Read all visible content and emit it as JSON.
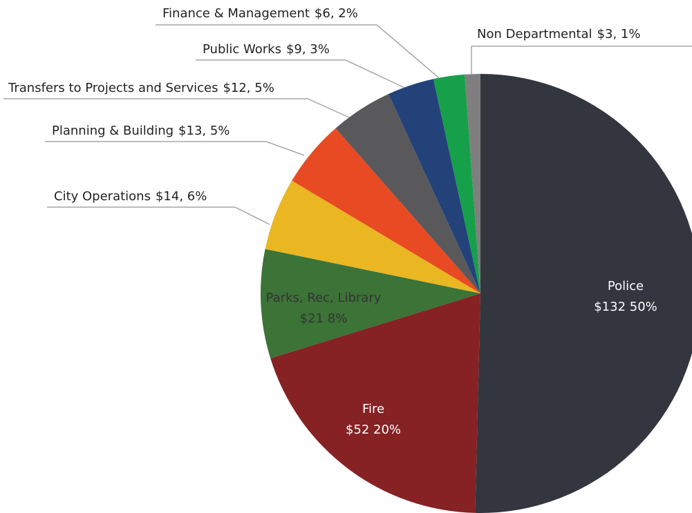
{
  "chart_data": {
    "type": "pie",
    "categories": [
      "Police",
      "Fire",
      "Parks, Rec, Library",
      "City Operations",
      "Planning & Building",
      "Transfers to Projects and Services",
      "Public Works",
      "Finance & Management",
      "Non Departmental"
    ],
    "values": [
      132,
      52,
      21,
      14,
      13,
      12,
      9,
      6,
      3
    ],
    "value_labels": [
      "$132  50%",
      "$52  20%",
      "$21  8%",
      "$14, 6%",
      "$13, 5%",
      "$12, 5%",
      "$9, 3%",
      "$6, 2%",
      "$3, 1%"
    ],
    "colors": [
      "#33363f",
      "#862124",
      "#3c7337",
      "#eab622",
      "#e84b24",
      "#59595b",
      "#23427a",
      "#16a04a",
      "#7f7f7f"
    ]
  }
}
